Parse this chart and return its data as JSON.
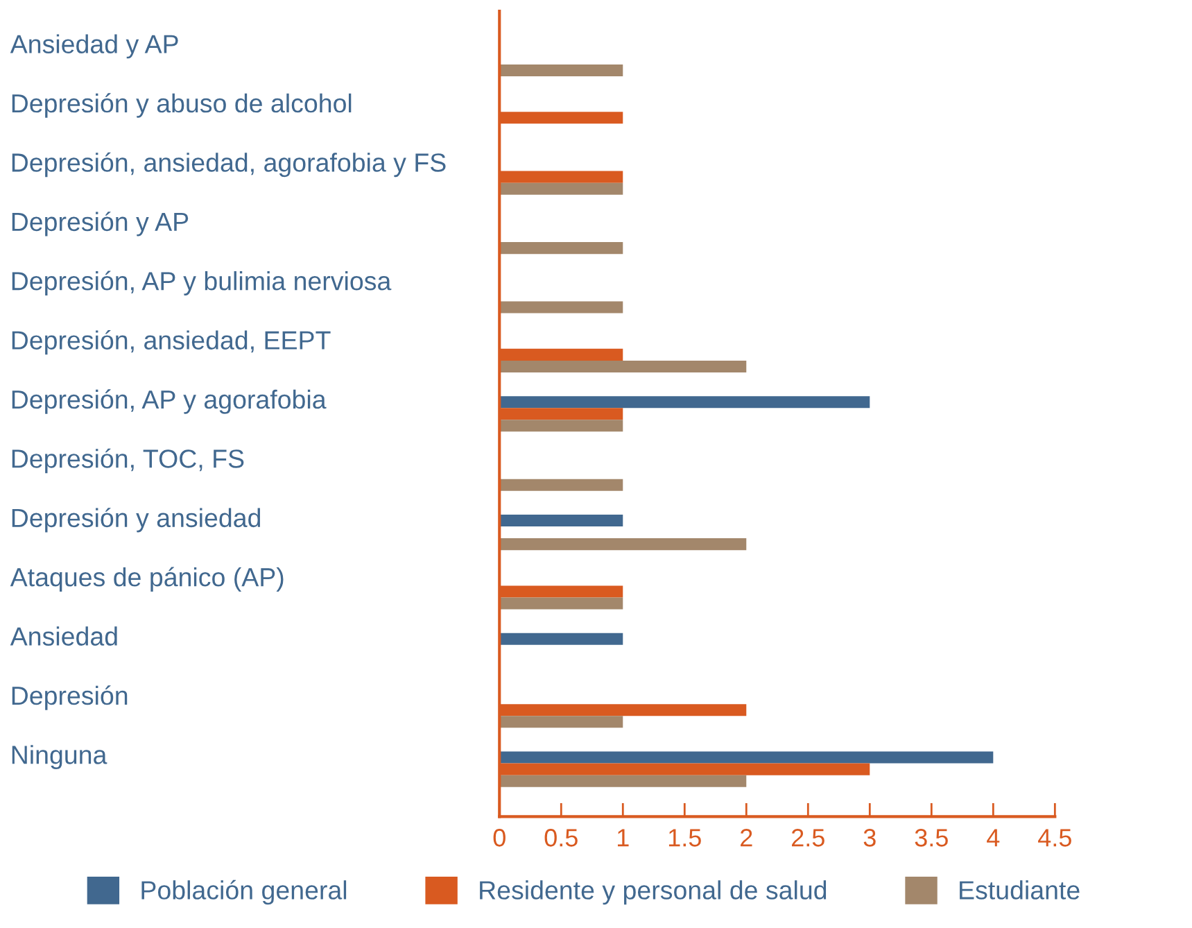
{
  "chart_data": {
    "type": "bar",
    "orientation": "horizontal",
    "categories": [
      "Ansiedad y AP",
      "Depresión y abuso de alcohol",
      "Depresión, ansiedad, agorafobia y FS",
      "Depresión y AP",
      "Depresión, AP y bulimia nerviosa",
      "Depresión, ansiedad, EEPT",
      "Depresión, AP y agorafobia",
      "Depresión, TOC, FS",
      "Depresión y ansiedad",
      "Ataques de pánico (AP)",
      "Ansiedad",
      "Depresión",
      "Ninguna"
    ],
    "series": [
      {
        "name": "Población general",
        "color": "#41688f",
        "values": [
          null,
          null,
          null,
          null,
          null,
          null,
          3,
          null,
          1,
          null,
          1,
          null,
          4
        ]
      },
      {
        "name": "Residente y personal de salud",
        "color": "#d95a20",
        "values": [
          null,
          1,
          1,
          null,
          null,
          1,
          1,
          null,
          null,
          1,
          null,
          2,
          3
        ]
      },
      {
        "name": "Estudiante",
        "color": "#a3876b",
        "values": [
          1,
          null,
          1,
          1,
          1,
          2,
          1,
          1,
          2,
          1,
          null,
          1,
          2
        ]
      }
    ],
    "xlim": [
      0,
      4.5
    ],
    "xticks": [
      0,
      0.5,
      1,
      1.5,
      2,
      2.5,
      3,
      3.5,
      4,
      4.5
    ],
    "grid": false,
    "legend": "bottom"
  }
}
